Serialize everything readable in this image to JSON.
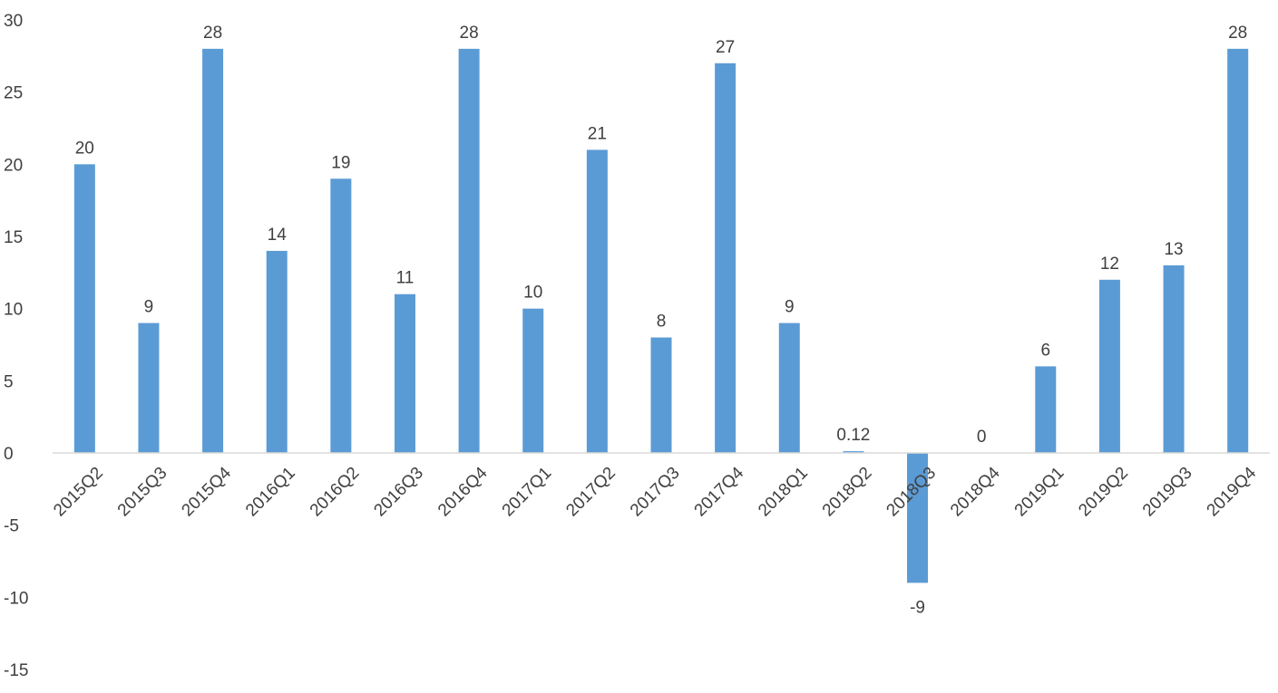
{
  "chart_data": {
    "type": "bar",
    "categories": [
      "2015Q2",
      "2015Q3",
      "2015Q4",
      "2016Q1",
      "2016Q2",
      "2016Q3",
      "2016Q4",
      "2017Q1",
      "2017Q2",
      "2017Q3",
      "2017Q4",
      "2018Q1",
      "2018Q2",
      "2018Q3",
      "2018Q4",
      "2019Q1",
      "2019Q2",
      "2019Q3",
      "2019Q4"
    ],
    "values": [
      20,
      9,
      28,
      14,
      19,
      11,
      28,
      10,
      21,
      8,
      27,
      9,
      0.12,
      -9,
      0,
      6,
      12,
      13,
      28
    ],
    "data_labels": [
      "20",
      "9",
      "28",
      "14",
      "19",
      "11",
      "28",
      "10",
      "21",
      "8",
      "27",
      "9",
      "0.12",
      "-9",
      "0",
      "6",
      "12",
      "13",
      "28"
    ],
    "y_ticks": [
      30,
      25,
      20,
      15,
      10,
      5,
      0,
      -5,
      -10,
      -15
    ],
    "ylim": [
      -15,
      30
    ],
    "title": "",
    "xlabel": "",
    "ylabel": "",
    "grid": false,
    "legend": "none",
    "bar_color": "#5b9bd5",
    "axis_color": "#d9d9d9",
    "text_color": "#404040"
  }
}
